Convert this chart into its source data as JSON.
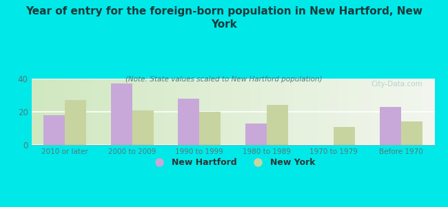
{
  "title": "Year of entry for the foreign-born population in New Hartford, New\nYork",
  "subtitle": "(Note: State values scaled to New Hartford population)",
  "categories": [
    "2010 or later",
    "2000 to 2009",
    "1990 to 1999",
    "1980 to 1989",
    "1970 to 1979",
    "Before 1970"
  ],
  "new_hartford": [
    18,
    37,
    28,
    13,
    0,
    23
  ],
  "new_york": [
    27,
    21,
    20,
    24,
    11,
    14
  ],
  "bar_color_nh": "#c8a8d8",
  "bar_color_ny": "#c8d4a0",
  "background_color": "#00e8e8",
  "plot_bg_left": "#d0e8c0",
  "plot_bg_right": "#f0f4e8",
  "ylim": [
    0,
    40
  ],
  "yticks": [
    0,
    20,
    40
  ],
  "watermark": "City-Data.com",
  "legend_label_nh": "New Hartford",
  "legend_label_ny": "New York",
  "title_color": "#1a3a3a",
  "subtitle_color": "#557777",
  "tick_color": "#557777",
  "watermark_color": "#aacccc"
}
